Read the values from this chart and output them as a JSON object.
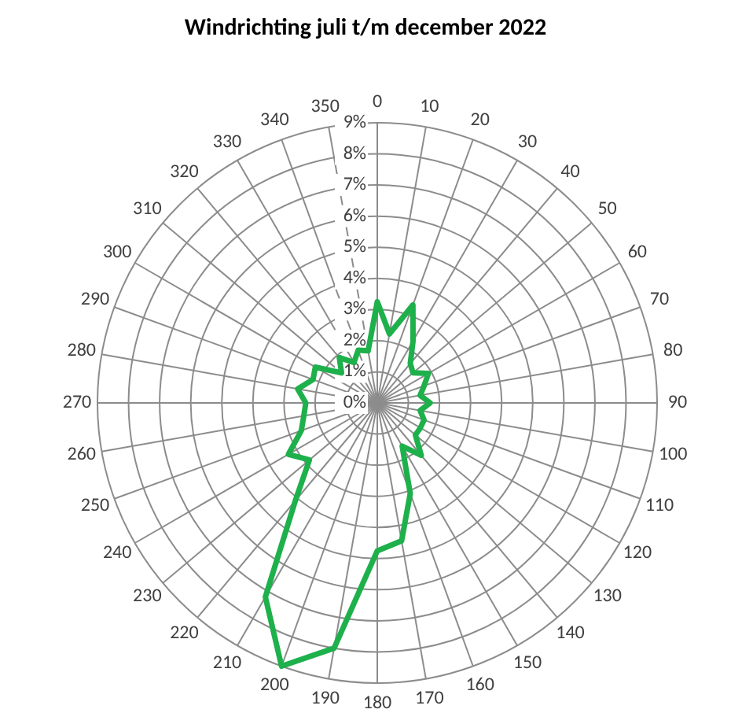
{
  "chart_data": {
    "type": "radar",
    "title": "Windrichting juli t/m december 2022",
    "categories": [
      "0",
      "10",
      "20",
      "30",
      "40",
      "50",
      "60",
      "70",
      "80",
      "90",
      "100",
      "110",
      "120",
      "130",
      "140",
      "150",
      "160",
      "170",
      "180",
      "190",
      "200",
      "210",
      "220",
      "230",
      "240",
      "250",
      "260",
      "270",
      "280",
      "290",
      "300",
      "310",
      "320",
      "330",
      "340",
      "350"
    ],
    "series": [
      {
        "color": "#1db04b",
        "values": [
          3.25,
          2.25,
          3.35,
          2.3,
          1.65,
          1.5,
          1.9,
          1.6,
          1.4,
          1.7,
          1.4,
          1.6,
          1.6,
          1.6,
          2.2,
          1.6,
          3.1,
          4.5,
          4.75,
          8.0,
          9.0,
          7.2,
          4.1,
          2.85,
          3.3,
          2.6,
          2.4,
          2.3,
          2.6,
          2.2,
          2.3,
          1.5,
          1.9,
          1.5,
          1.8,
          1.7
        ]
      }
    ],
    "ylim": [
      0,
      9
    ],
    "yticks": [
      {
        "value": 0,
        "label": "0%"
      },
      {
        "value": 1,
        "label": "1%"
      },
      {
        "value": 2,
        "label": "2%"
      },
      {
        "value": 3,
        "label": "3%"
      },
      {
        "value": 4,
        "label": "4%"
      },
      {
        "value": 5,
        "label": "5%"
      },
      {
        "value": 6,
        "label": "6%"
      },
      {
        "value": 7,
        "label": "7%"
      },
      {
        "value": 8,
        "label": "8%"
      },
      {
        "value": 9,
        "label": "9%"
      }
    ],
    "grid": true,
    "marker": "none",
    "line_style": "solid"
  }
}
